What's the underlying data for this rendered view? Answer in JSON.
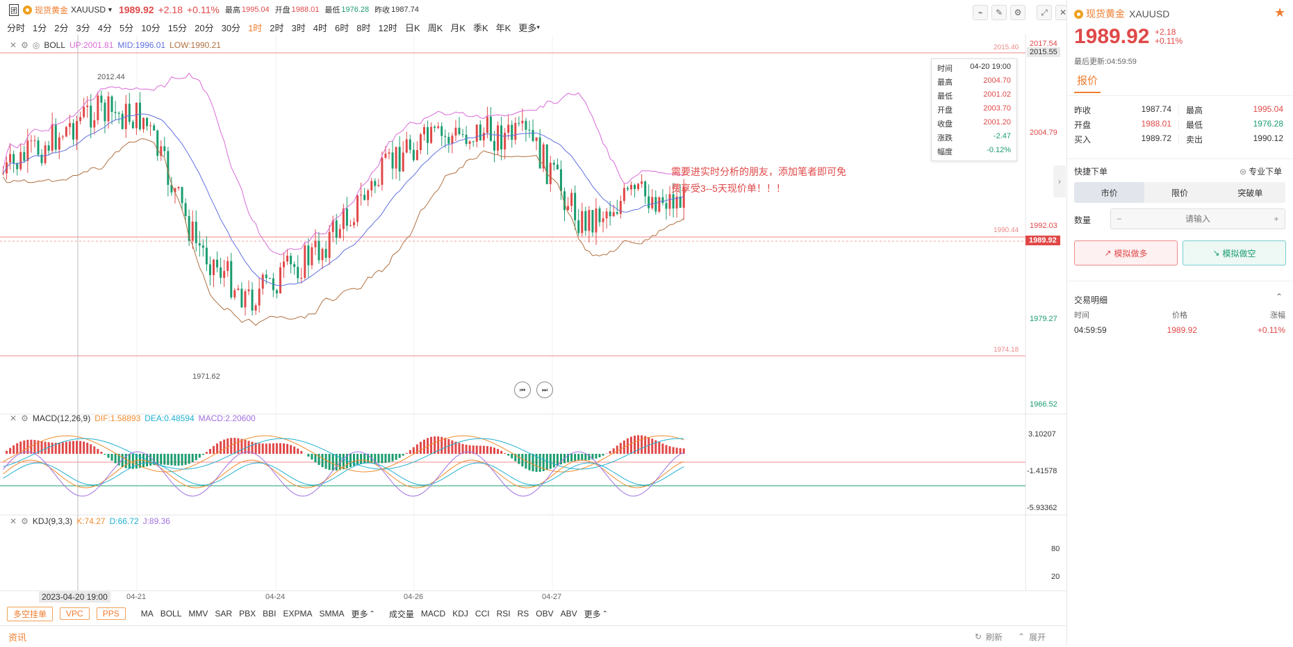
{
  "header": {
    "fav_label": "团",
    "symbol_name": "现货黄金",
    "symbol_code": "XAUUSD",
    "price": "1989.92",
    "change": "+2.18",
    "change_pct": "+0.11%",
    "high_label": "最高",
    "high": "1995.04",
    "open_label": "开盘",
    "open": "1988.01",
    "low_label": "最低",
    "low": "1976.28",
    "prev_label": "昨收",
    "prev": "1987.74"
  },
  "periods": [
    "分时",
    "1分",
    "2分",
    "3分",
    "4分",
    "5分",
    "10分",
    "15分",
    "20分",
    "30分",
    "1时",
    "2时",
    "3时",
    "4时",
    "6时",
    "8时",
    "12时",
    "日K",
    "周K",
    "月K",
    "季K",
    "年K",
    "更多"
  ],
  "active_period": "1时",
  "boll": {
    "name": "BOLL",
    "up": "UP:2001.81",
    "mid": "MID:1996.01",
    "low": "LOW:1990.21"
  },
  "macd": {
    "name": "MACD(12,26,9)",
    "dif": "DIF:1.58893",
    "dea": "DEA:0.48594",
    "macd": "MACD:2.20600",
    "axis": [
      "3.10207",
      "-1.41578",
      "-5.93362"
    ]
  },
  "kdj": {
    "name": "KDJ(9,3,3)",
    "k": "K:74.27",
    "d": "D:66.72",
    "j": "J:89.36",
    "axis": [
      "80",
      "20"
    ]
  },
  "price_axis": [
    "2017.54",
    "2015.55",
    "2004.79",
    "1992.03",
    "1989.92",
    "1979.27",
    "1966.52"
  ],
  "price_lines": {
    "top": "2015.40",
    "mid": "1990.44",
    "bottom": "1974.18"
  },
  "annotations": {
    "hi": "2012.44",
    "lo": "1971.62"
  },
  "promo_line1": "需要进实时分析的朋友，添加笔者即可免",
  "promo_line2": "费享受3--5天现价单！！！",
  "tooltip": [
    {
      "k": "时间",
      "v": "04-20 19:00",
      "c": "#333"
    },
    {
      "k": "最高",
      "v": "2004.70",
      "c": "#e04848"
    },
    {
      "k": "最低",
      "v": "2001.02",
      "c": "#e04848"
    },
    {
      "k": "开盘",
      "v": "2003.70",
      "c": "#e04848"
    },
    {
      "k": "收盘",
      "v": "2001.20",
      "c": "#e04848"
    },
    {
      "k": "涨跌",
      "v": "-2.47",
      "c": "#1a9c6e"
    },
    {
      "k": "幅度",
      "v": "-0.12%",
      "c": "#1a9c6e"
    }
  ],
  "xaxis": {
    "cursor": "2023-04-20 19:00",
    "labels": [
      "04-21",
      "04-24",
      "04-26",
      "04-27"
    ]
  },
  "bottom": {
    "tags": [
      "多空挂单",
      "VPC",
      "PPS"
    ],
    "main_ind": [
      "MA",
      "BOLL",
      "MMV",
      "SAR",
      "PBX",
      "BBI",
      "EXPMA",
      "SMMA",
      "更多"
    ],
    "sub_ind": [
      "成交量",
      "MACD",
      "KDJ",
      "CCI",
      "RSI",
      "RS",
      "OBV",
      "ABV",
      "更多"
    ]
  },
  "status": {
    "news": "资讯",
    "refresh": "刷新",
    "expand": "展开"
  },
  "side": {
    "name": "现货黄金",
    "code": "XAUUSD",
    "price": "1989.92",
    "chg": "+2.18",
    "chg_pct": "+0.11%",
    "update": "最后更新:04:59:59",
    "quote_tab": "报价",
    "quotes": [
      {
        "l": "昨收",
        "v": "1987.74",
        "c": "#333",
        "l2": "最高",
        "v2": "1995.04",
        "c2": "#e04848"
      },
      {
        "l": "开盘",
        "v": "1988.01",
        "c": "#e04848",
        "l2": "最低",
        "v2": "1976.28",
        "c2": "#1a9c6e"
      },
      {
        "l": "买入",
        "v": "1989.72",
        "c": "#333",
        "l2": "卖出",
        "v2": "1990.12",
        "c2": "#333"
      }
    ],
    "quick_order": "快捷下单",
    "pro_order": "专业下单",
    "order_tabs": [
      "市价",
      "限价",
      "突破单"
    ],
    "qty_label": "数量",
    "qty_placeholder": "请输入",
    "buy_label": "模拟做多",
    "sell_label": "模拟做空",
    "trade_title": "交易明细",
    "trade_headers": [
      "时间",
      "价格",
      "涨幅"
    ],
    "trade_row": {
      "time": "04:59:59",
      "price": "1989.92",
      "pct": "+0.11%"
    }
  },
  "colors": {
    "up": "#e04848",
    "down": "#1a9c6e",
    "accent": "#f07d2e",
    "upper": "#d86ad8",
    "mid": "#6070e0",
    "lower": "#b07040"
  }
}
